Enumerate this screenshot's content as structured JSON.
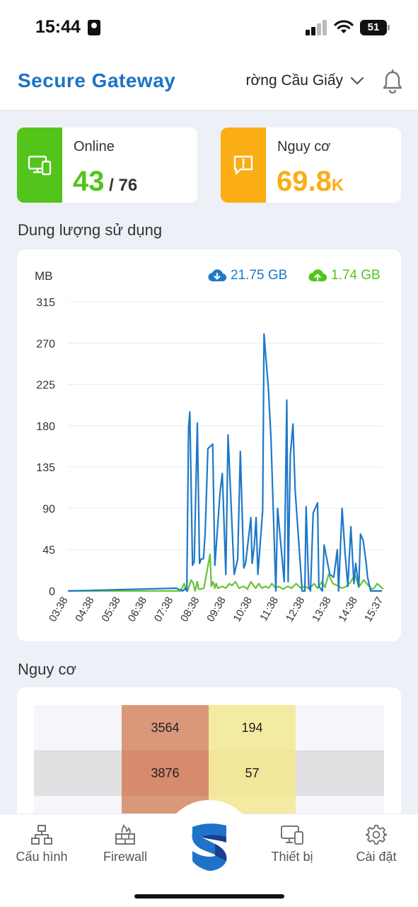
{
  "status_bar": {
    "time": "15:44",
    "battery": "51"
  },
  "header": {
    "title": "Secure Gateway",
    "location": "rờng Cầu Giấy"
  },
  "cards": {
    "online": {
      "label": "Online",
      "value": "43",
      "total": "/ 76",
      "color": "#52c41a"
    },
    "risk": {
      "label": "Nguy cơ",
      "value": "69.8",
      "suffix": "K",
      "color": "#faad14"
    }
  },
  "usage": {
    "title": "Dung lượng sử dụng",
    "unit": "MB",
    "download": "21.75 GB",
    "upload": "1.74 GB",
    "download_color": "#1e78c8",
    "upload_color": "#67c23a"
  },
  "chart_data": {
    "type": "line",
    "ylabel": "MB",
    "ylim": [
      0,
      315
    ],
    "yticks": [
      "0",
      "45",
      "90",
      "135",
      "180",
      "225",
      "270",
      "315"
    ],
    "xticks": [
      "03:38",
      "04:38",
      "05:38",
      "06:38",
      "07:38",
      "08:38",
      "09:38",
      "10:38",
      "11:38",
      "12:38",
      "13:38",
      "14:38",
      "15:37"
    ],
    "xmin_minutes": 218,
    "xmax_minutes": 937,
    "series": [
      {
        "name": "download",
        "color": "#1e78c8",
        "x": [
          "03:38",
          "07:45",
          "08:00",
          "08:06",
          "08:09",
          "08:13",
          "08:16",
          "08:22",
          "08:26",
          "08:33",
          "08:38",
          "08:42",
          "08:47",
          "08:51",
          "08:57",
          "09:08",
          "09:13",
          "09:25",
          "09:30",
          "09:38",
          "09:43",
          "09:57",
          "10:05",
          "10:11",
          "10:19",
          "10:23",
          "10:35",
          "10:38",
          "10:43",
          "10:47",
          "10:51",
          "11:02",
          "11:05",
          "11:15",
          "11:21",
          "11:32",
          "11:36",
          "11:51",
          "11:57",
          "12:00",
          "12:05",
          "12:11",
          "12:16",
          "12:32",
          "12:38",
          "12:41",
          "12:47",
          "12:51",
          "12:57",
          "13:07",
          "13:10",
          "13:18",
          "13:22",
          "13:35",
          "13:44",
          "13:52",
          "13:55",
          "14:03",
          "14:10",
          "14:16",
          "14:23",
          "14:30",
          "14:34",
          "14:41",
          "14:45",
          "14:51",
          "14:58",
          "15:01",
          "15:08",
          "15:13",
          "15:22",
          "15:25",
          "15:34"
        ],
        "y": [
          0,
          3,
          0,
          3,
          0,
          178,
          195,
          28,
          32,
          183,
          30,
          35,
          35,
          65,
          155,
          160,
          28,
          108,
          128,
          18,
          170,
          18,
          35,
          152,
          25,
          30,
          80,
          30,
          50,
          80,
          18,
          88,
          280,
          220,
          165,
          0,
          90,
          10,
          208,
          10,
          148,
          182,
          110,
          0,
          0,
          92,
          5,
          0,
          85,
          96,
          5,
          0,
          50,
          18,
          15,
          45,
          0,
          90,
          40,
          5,
          70,
          8,
          30,
          5,
          62,
          55,
          30,
          15,
          0,
          0,
          0,
          0,
          0
        ]
      },
      {
        "name": "upload",
        "color": "#67c23a",
        "x": [
          "03:38",
          "07:45",
          "07:55",
          "08:03",
          "08:07",
          "08:11",
          "08:19",
          "08:24",
          "08:28",
          "08:33",
          "08:36",
          "08:40",
          "08:48",
          "09:02",
          "09:05",
          "09:09",
          "09:13",
          "09:16",
          "09:20",
          "09:30",
          "09:38",
          "09:46",
          "09:52",
          "10:00",
          "10:08",
          "10:19",
          "10:27",
          "10:35",
          "10:46",
          "10:53",
          "11:00",
          "11:08",
          "11:15",
          "11:23",
          "11:32",
          "11:38",
          "11:49",
          "11:59",
          "12:08",
          "12:18",
          "12:29",
          "12:39",
          "12:48",
          "12:59",
          "13:07",
          "13:17",
          "13:24",
          "13:32",
          "13:42",
          "13:52",
          "14:03",
          "14:13",
          "14:23",
          "14:32",
          "14:41",
          "14:52",
          "15:03",
          "15:11",
          "15:16",
          "15:23",
          "15:30",
          "15:37"
        ],
        "y": [
          0,
          0,
          0,
          8,
          2,
          0,
          12,
          8,
          0,
          10,
          2,
          2,
          3,
          40,
          5,
          10,
          3,
          8,
          3,
          5,
          3,
          8,
          6,
          10,
          3,
          5,
          2,
          10,
          3,
          8,
          3,
          5,
          3,
          8,
          3,
          5,
          2,
          5,
          3,
          8,
          3,
          5,
          2,
          8,
          3,
          10,
          4,
          18,
          8,
          6,
          3,
          5,
          10,
          18,
          4,
          12,
          6,
          2,
          3,
          8,
          5,
          2
        ]
      }
    ]
  },
  "risk_section": {
    "title": "Nguy cơ",
    "rows": [
      {
        "c1": "3564",
        "c2": "194"
      },
      {
        "c1": "3876",
        "c2": "57"
      }
    ]
  },
  "tabbar": {
    "items": [
      {
        "label": "Cấu hình"
      },
      {
        "label": "Firewall"
      },
      {
        "label": "Thiết bị"
      },
      {
        "label": "Cài đặt"
      }
    ]
  }
}
